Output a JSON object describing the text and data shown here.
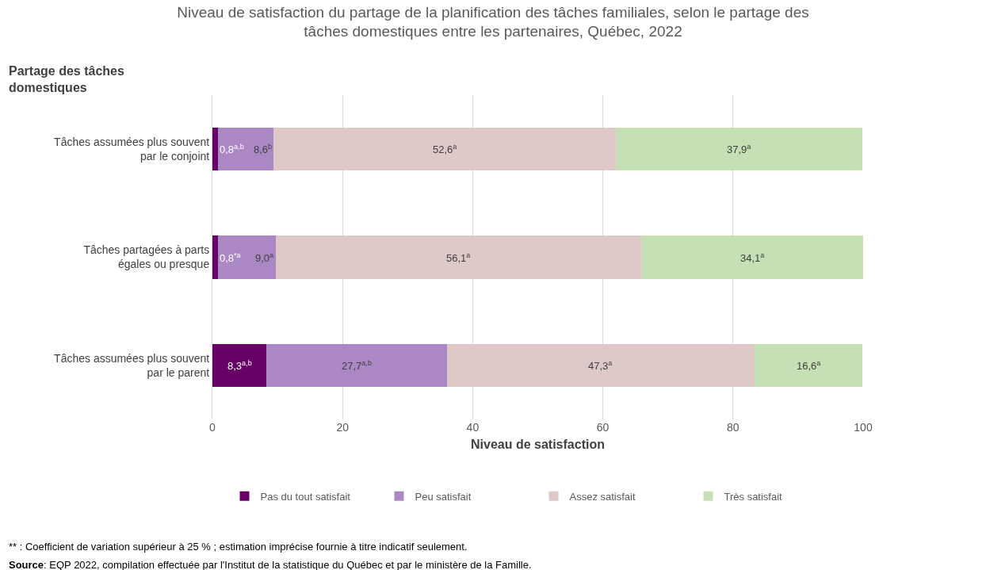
{
  "chart_data": {
    "type": "bar",
    "orientation": "horizontal",
    "stacked": true,
    "title": "Niveau de satisfaction du partage de la planification des tâches familiales, selon le partage des tâches domestiques entre les partenaires, Québec, 2022",
    "xlabel": "Niveau de satisfaction",
    "ylabel": "Partage des tâches domestiques",
    "categories": [
      "Tâches assumées plus souvent par le conjoint",
      "Tâches partagées à parts égales ou presque",
      "Tâches assumées plus souvent par le parent"
    ],
    "series": [
      {
        "name": "Pas du tout satisfait",
        "color": "#660066",
        "values": [
          0.8,
          0.8,
          8.3
        ],
        "value_labels": [
          "0,8$^{a,b}$",
          "0,8$^{*a}$",
          "8,3$^{a,b}$"
        ]
      },
      {
        "name": "Peu satisfait",
        "color": "#ab87c3",
        "values": [
          8.6,
          9.0,
          27.7
        ],
        "value_labels": [
          "8,6$^{b}$",
          "9,0$^{a}$",
          "27,7$^{a,b}$"
        ]
      },
      {
        "name": "Assez satisfait",
        "color": "#dec8c8",
        "values": [
          52.6,
          56.1,
          47.3
        ],
        "value_labels": [
          "52,6$^{a}$",
          "56,1$^{a}$",
          "47,3$^{a}$"
        ]
      },
      {
        "name": "Très satisfait",
        "color": "#c5e0b4",
        "values": [
          37.9,
          34.1,
          16.6
        ],
        "value_labels": [
          "37,9$^{a}$",
          "34,1$^{a}$",
          "16,6$^{a}$"
        ]
      }
    ],
    "xlim": [
      0,
      100
    ],
    "xticks": [
      0,
      20,
      40,
      60,
      80,
      100
    ],
    "grid": "x",
    "legend": "bottom",
    "annotations": [
      "** : Coefficient de variation supérieur à 25 % ; estimation imprécise fournie à titre indicatif seulement.",
      "Source: EQP 2022, compilation effectuée par l'Institut de la statistique du Québec et par le ministère de la Famille."
    ]
  }
}
